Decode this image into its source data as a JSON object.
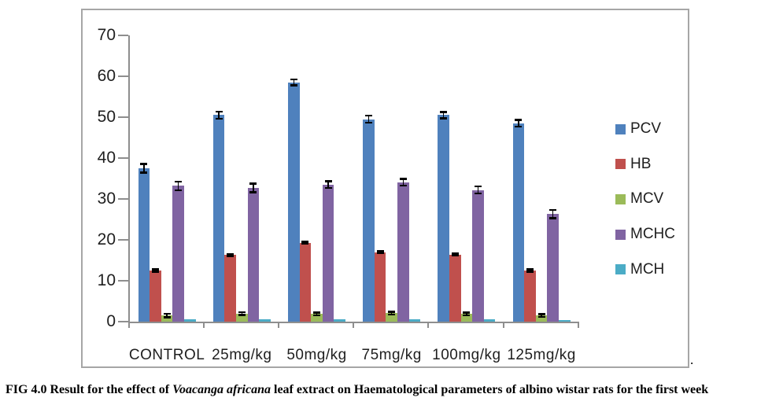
{
  "figure": {
    "caption": {
      "prefix": "FIG 4.0 Result for the effect of ",
      "italic_species": "Voacanga africana",
      "suffix": " leaf extract on Haematological parameters of albino wistar rats for the first week"
    },
    "trailing_period": "."
  },
  "chart_data": {
    "type": "bar",
    "title": "",
    "categories": [
      "CONTROL",
      "25mg/kg",
      "50mg/kg",
      "75mg/kg",
      "100mg/kg",
      "125mg/kg"
    ],
    "series": [
      {
        "name": "PCV",
        "color": "#4F81BD",
        "values": [
          37.5,
          50.5,
          58.5,
          49.5,
          50.5,
          48.5
        ],
        "errors": [
          1.0,
          0.8,
          0.7,
          0.8,
          0.7,
          0.8
        ]
      },
      {
        "name": "HB",
        "color": "#C0504D",
        "values": [
          12.5,
          16.3,
          19.3,
          17.0,
          16.4,
          12.5
        ],
        "errors": [
          0.2,
          0.2,
          0.2,
          0.2,
          0.2,
          0.2
        ]
      },
      {
        "name": "MCV",
        "color": "#9BBB59",
        "values": [
          1.5,
          2.0,
          1.9,
          2.1,
          1.9,
          1.5
        ],
        "errors": [
          0.4,
          0.3,
          0.3,
          0.3,
          0.3,
          0.3
        ]
      },
      {
        "name": "MCHC",
        "color": "#8064A2",
        "values": [
          33.2,
          32.7,
          33.5,
          34.1,
          32.2,
          26.3
        ],
        "errors": [
          1.0,
          1.0,
          0.8,
          0.8,
          0.8,
          1.0
        ]
      },
      {
        "name": "MCH",
        "color": "#4BACC6",
        "values": [
          0.5,
          0.5,
          0.5,
          0.6,
          0.6,
          0.3
        ],
        "errors": [
          0,
          0,
          0,
          0,
          0,
          0
        ]
      }
    ],
    "y_axis": {
      "label": "",
      "min": 0,
      "max": 70,
      "tick_step": 10,
      "ticks": [
        0,
        10,
        20,
        30,
        40,
        50,
        60,
        70
      ]
    },
    "x_axis": {
      "label": ""
    },
    "legend": {
      "position": "right-inside",
      "entries": [
        "PCV",
        "HB",
        "MCV",
        "MCHC",
        "MCH"
      ]
    },
    "grid": false,
    "error_bars": true
  },
  "colors": {
    "axis": "#8E8E8E",
    "frame_border": "#A6A6A6",
    "text": "#1F1F1F",
    "error_bar": "#000000",
    "background": "#FFFFFF"
  }
}
